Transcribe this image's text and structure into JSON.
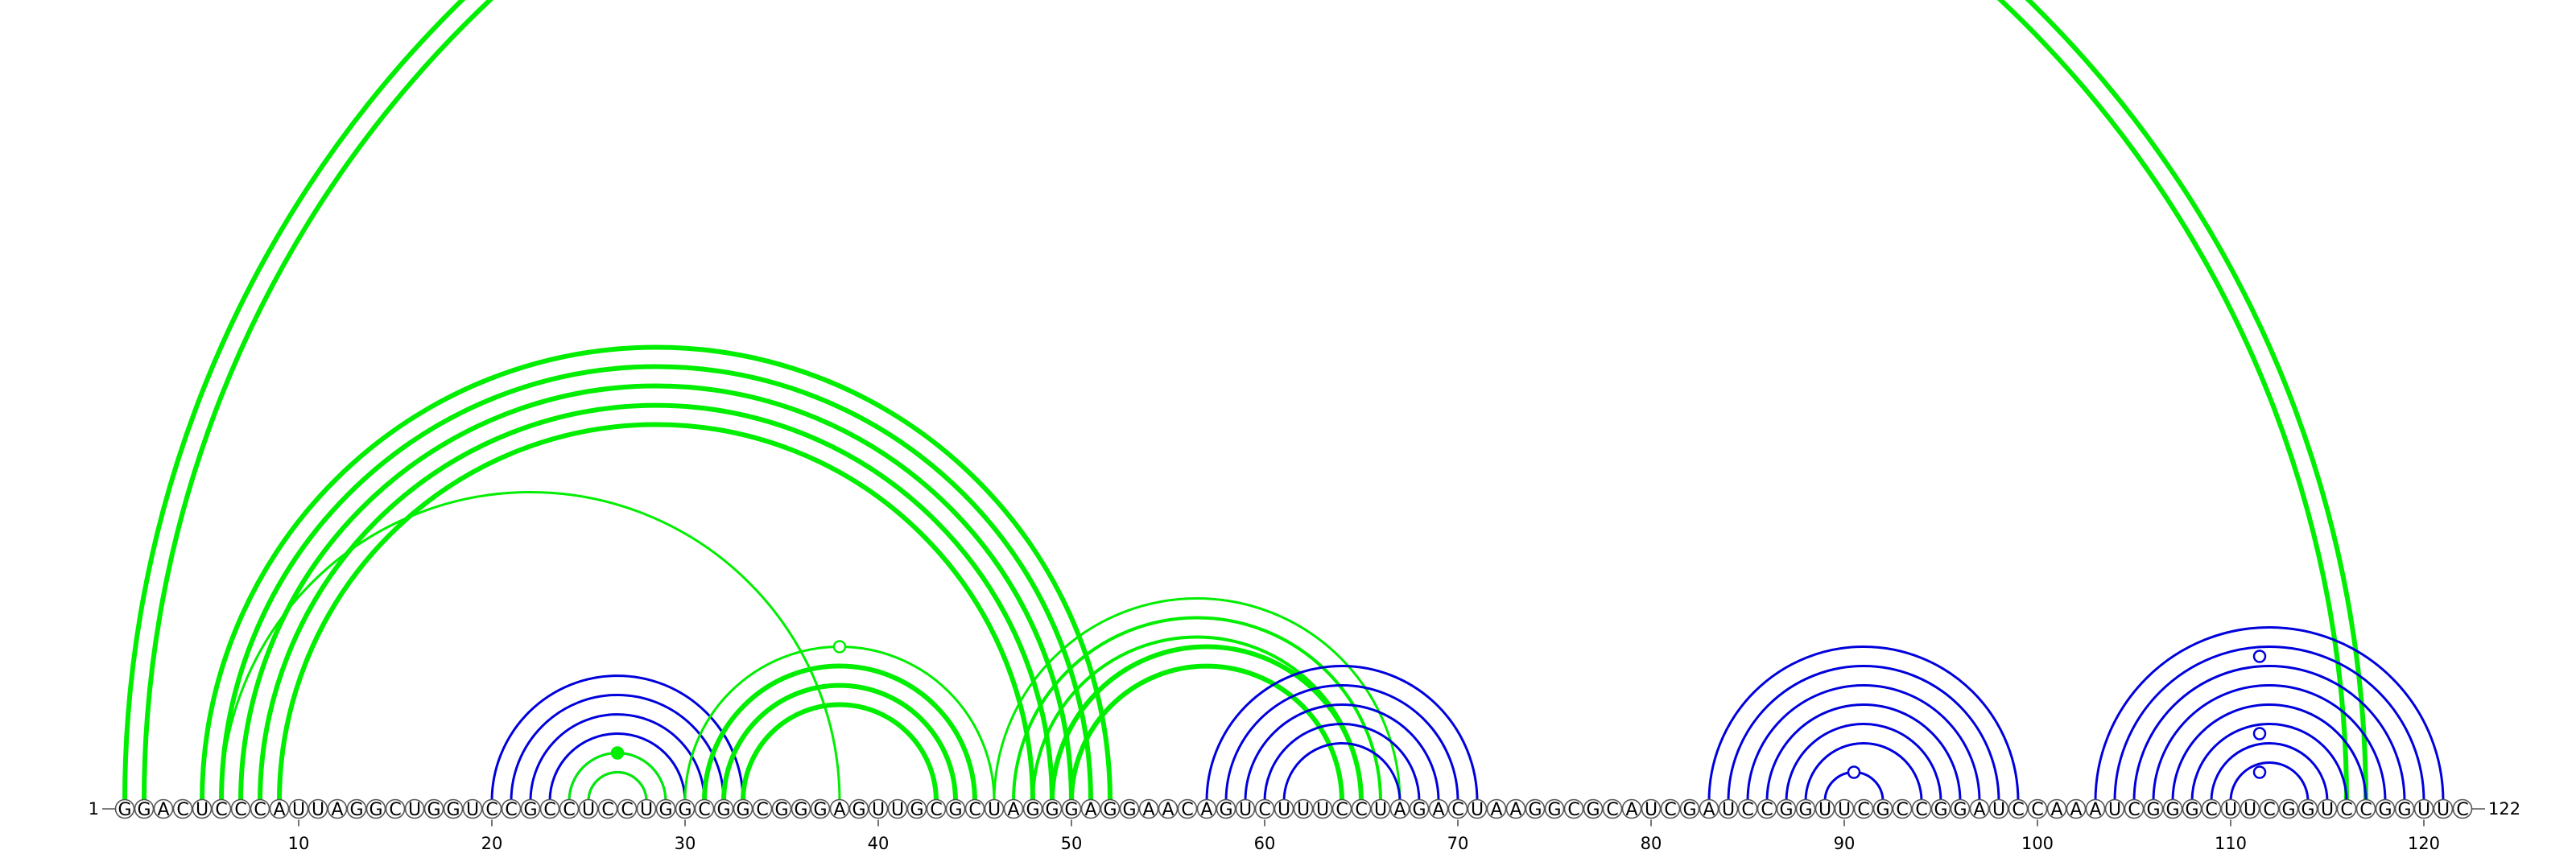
{
  "sequence": "GGACUCCCAUUAGGCUGGUCCGCCUCCUGGCGGCGGGAGUUGCGCUAGGGAGGAACAGUCUUUCCUAGACUAAGGCGCAUCGAUCCGGUUCGCCGGAUCCAAAUCGGGCUUCGGUCCGGUUC",
  "length": 122,
  "start_label": "1",
  "end_label": "122",
  "tick_positions": [
    10,
    20,
    30,
    40,
    50,
    60,
    70,
    80,
    90,
    100,
    110,
    120
  ],
  "tick_labels": [
    "10",
    "20",
    "30",
    "40",
    "50",
    "60",
    "70",
    "80",
    "90",
    "100",
    "110",
    "120"
  ],
  "colors": {
    "conserved": "#0000dd",
    "alternative": "#00ee00",
    "nucleotide_stroke": "#555555"
  },
  "helices": [
    {
      "i": 1,
      "j": 117,
      "len": 2,
      "color": "alternative",
      "lw": 6
    },
    {
      "i": 5,
      "j": 52,
      "len": 2,
      "color": "alternative",
      "lw": 6
    },
    {
      "i": 6,
      "j": 51,
      "len": 1,
      "color": "alternative",
      "lw": 3
    },
    {
      "i": 7,
      "j": 50,
      "len": 3,
      "color": "alternative",
      "lw": 6
    },
    {
      "i": 6,
      "j": 38,
      "len": 1,
      "color": "alternative",
      "lw": 3
    },
    {
      "i": 20,
      "j": 33,
      "len": 4,
      "color": "conserved",
      "lw": 3
    },
    {
      "i": 24,
      "j": 29,
      "len": 2,
      "color": "conserved",
      "lw": 3
    },
    {
      "i": 24,
      "j": 29,
      "len": 2,
      "color": "alternative",
      "lw": 3
    },
    {
      "i": 30,
      "j": 46,
      "len": 1,
      "color": "alternative",
      "lw": 3
    },
    {
      "i": 31,
      "j": 45,
      "len": 3,
      "color": "alternative",
      "lw": 6
    },
    {
      "i": 46,
      "j": 67,
      "len": 1,
      "color": "alternative",
      "lw": 3
    },
    {
      "i": 47,
      "j": 66,
      "len": 2,
      "color": "alternative",
      "lw": 4
    },
    {
      "i": 49,
      "j": 65,
      "len": 2,
      "color": "alternative",
      "lw": 6
    },
    {
      "i": 57,
      "j": 71,
      "len": 3,
      "color": "conserved",
      "lw": 3
    },
    {
      "i": 60,
      "j": 68,
      "len": 2,
      "color": "conserved",
      "lw": 3
    },
    {
      "i": 83,
      "j": 99,
      "len": 3,
      "color": "conserved",
      "lw": 3
    },
    {
      "i": 86,
      "j": 96,
      "len": 3,
      "color": "conserved",
      "lw": 3
    },
    {
      "i": 89,
      "j": 92,
      "len": 1,
      "color": "conserved",
      "lw": 3
    },
    {
      "i": 103,
      "j": 121,
      "len": 2,
      "color": "conserved",
      "lw": 3
    },
    {
      "i": 105,
      "j": 119,
      "len": 2,
      "color": "conserved",
      "lw": 3
    },
    {
      "i": 107,
      "j": 117,
      "len": 3,
      "color": "conserved",
      "lw": 3
    },
    {
      "i": 110,
      "j": 114,
      "len": 1,
      "color": "conserved",
      "lw": 3
    }
  ],
  "markers": [
    {
      "pos": 26.5,
      "arc_half_span": 2.5,
      "fill": "alternative"
    },
    {
      "pos": 38,
      "arc_half_span": 8,
      "fill": "none",
      "color": "alternative"
    },
    {
      "pos": 90.5,
      "arc_half_span": 1.5,
      "fill": "none",
      "color": "conserved"
    },
    {
      "pos": 111.5,
      "arc_half_span": 1.5,
      "fill": "none",
      "color": "conserved"
    },
    {
      "pos": 111.5,
      "arc_half_span": 3.5,
      "fill": "none",
      "color": "conserved"
    },
    {
      "pos": 111.5,
      "arc_half_span": 7.5,
      "fill": "none",
      "color": "conserved"
    }
  ]
}
